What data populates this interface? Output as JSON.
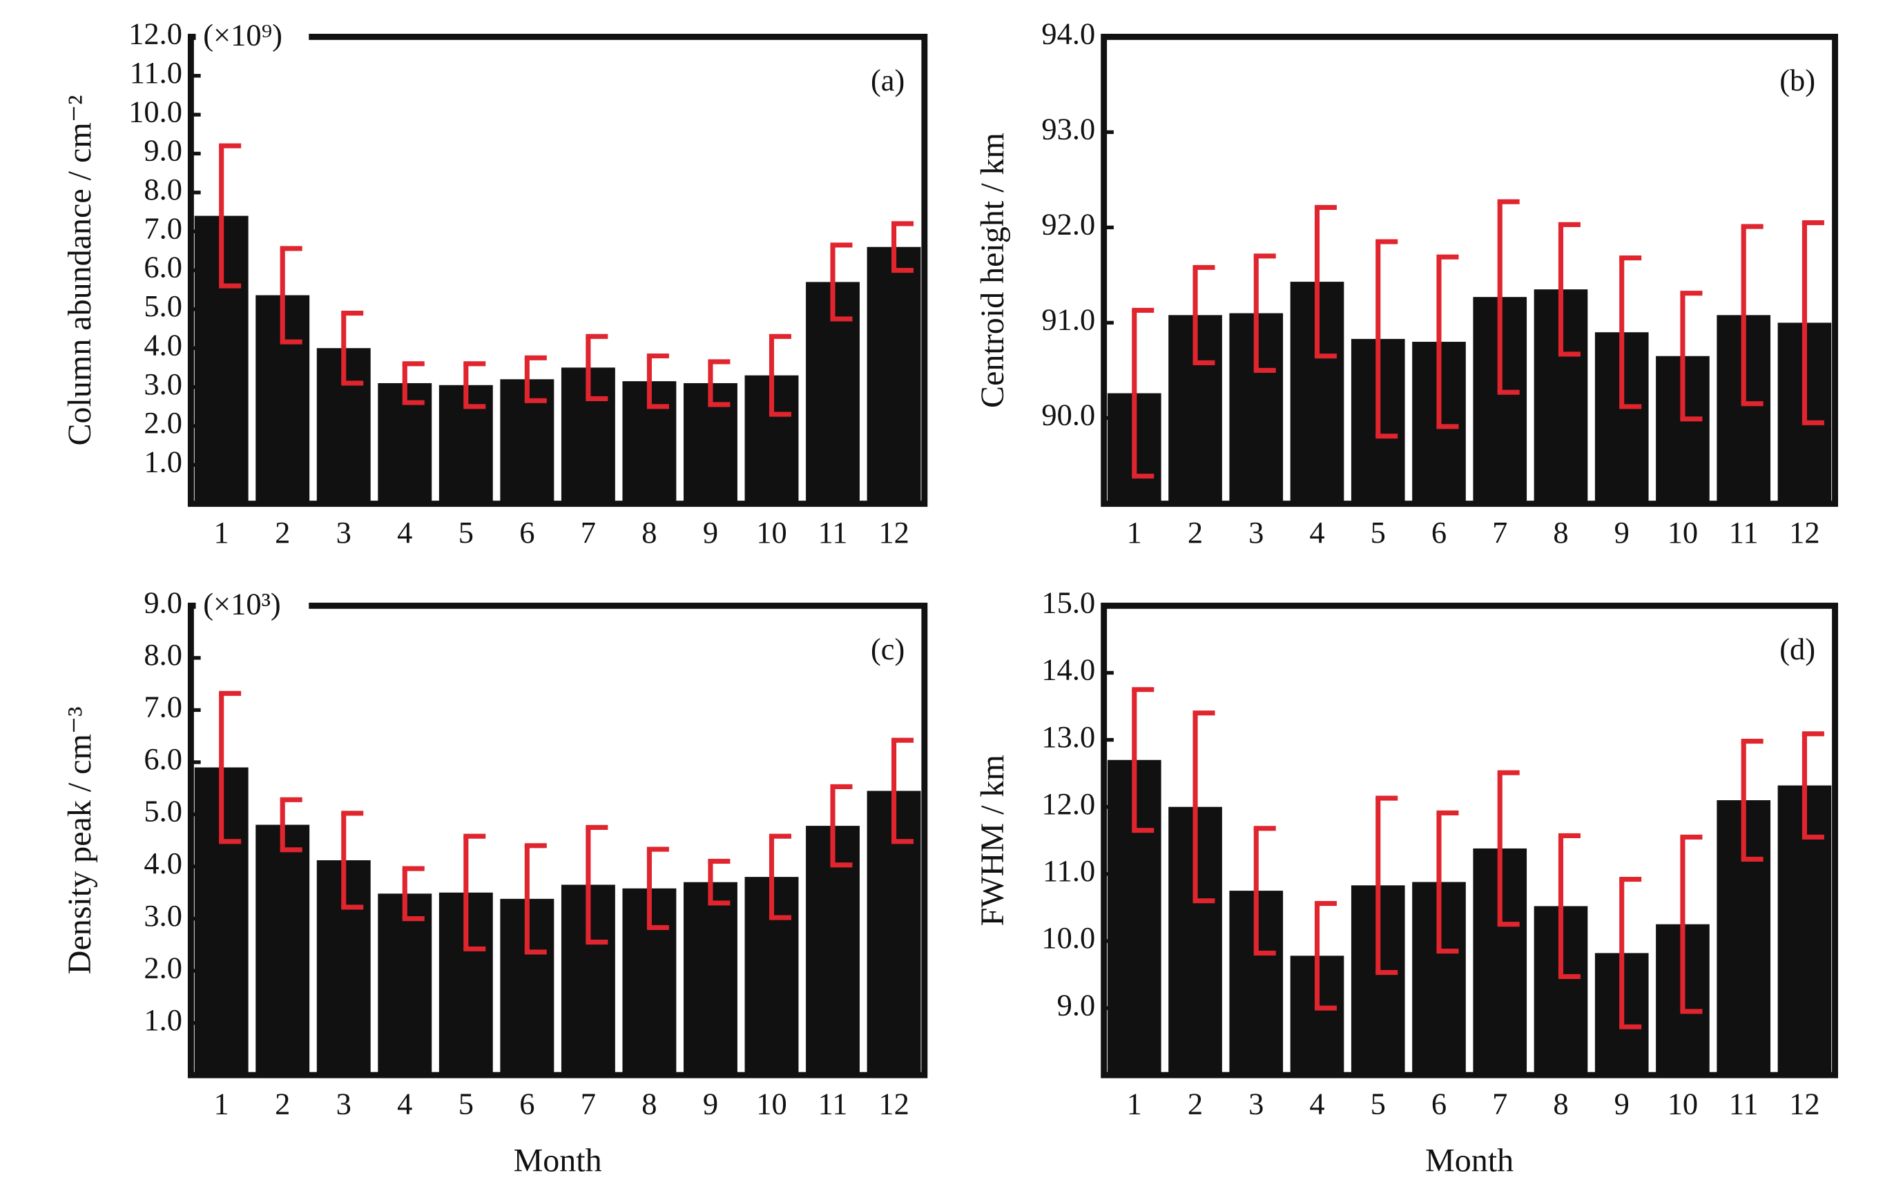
{
  "chart_data": [
    {
      "type": "bar",
      "panel_label": "(a)",
      "y_label": "Column abundance / cm⁻²",
      "multiplier": "(×10⁹)",
      "categories": [
        "1",
        "2",
        "3",
        "4",
        "5",
        "6",
        "7",
        "8",
        "9",
        "10",
        "11",
        "12"
      ],
      "values": [
        7.4,
        5.36,
        4.0,
        3.1,
        3.05,
        3.2,
        3.5,
        3.15,
        3.1,
        3.3,
        5.7,
        6.6
      ],
      "errors": [
        1.8,
        1.2,
        0.9,
        0.5,
        0.55,
        0.55,
        0.8,
        0.65,
        0.55,
        1.0,
        0.95,
        0.6
      ],
      "ylim": [
        0,
        12
      ],
      "yticks": [
        {
          "value": 1,
          "label": "1.0"
        },
        {
          "value": 2,
          "label": "2.0"
        },
        {
          "value": 3,
          "label": "3.0"
        },
        {
          "value": 4,
          "label": "4.0"
        },
        {
          "value": 5,
          "label": "5.0"
        },
        {
          "value": 6,
          "label": "6.0"
        },
        {
          "value": 7,
          "label": "7.0"
        },
        {
          "value": 8,
          "label": "8.0"
        },
        {
          "value": 9,
          "label": "9.0"
        },
        {
          "value": 10,
          "label": "10.0"
        },
        {
          "value": 11,
          "label": "11.0"
        },
        {
          "value": 12,
          "label": "12.0"
        }
      ],
      "color": "#111111",
      "error_color": "#e0252e"
    },
    {
      "type": "bar",
      "panel_label": "(b)",
      "y_label": "Centroid height / km",
      "categories": [
        "1",
        "2",
        "3",
        "4",
        "5",
        "6",
        "7",
        "8",
        "9",
        "10",
        "11",
        "12"
      ],
      "values": [
        90.26,
        91.08,
        91.1,
        91.43,
        90.83,
        90.8,
        91.27,
        91.35,
        90.9,
        90.65,
        91.08,
        91.0
      ],
      "errors": [
        0.87,
        0.5,
        0.6,
        0.78,
        1.02,
        0.89,
        1.0,
        0.68,
        0.78,
        0.66,
        0.93,
        1.05
      ],
      "ylim": [
        89.1,
        94
      ],
      "yticks": [
        {
          "value": 90,
          "label": "90.0"
        },
        {
          "value": 91,
          "label": "91.0"
        },
        {
          "value": 92,
          "label": "92.0"
        },
        {
          "value": 93,
          "label": "93.0"
        },
        {
          "value": 94,
          "label": "94.0"
        }
      ],
      "color": "#111111",
      "error_color": "#e0252e"
    },
    {
      "type": "bar",
      "panel_label": "(c)",
      "y_label": "Density peak / cm⁻³",
      "multiplier": "(×10³)",
      "x_label": "Month",
      "categories": [
        "1",
        "2",
        "3",
        "4",
        "5",
        "6",
        "7",
        "8",
        "9",
        "10",
        "11",
        "12"
      ],
      "values": [
        5.9,
        4.8,
        4.12,
        3.48,
        3.5,
        3.38,
        3.65,
        3.58,
        3.7,
        3.8,
        4.78,
        5.45
      ],
      "errors": [
        1.42,
        0.48,
        0.9,
        0.48,
        1.08,
        1.02,
        1.1,
        0.75,
        0.4,
        0.78,
        0.75,
        0.97
      ],
      "ylim": [
        0,
        9
      ],
      "yticks": [
        {
          "value": 1,
          "label": "1.0"
        },
        {
          "value": 2,
          "label": "2.0"
        },
        {
          "value": 3,
          "label": "3.0"
        },
        {
          "value": 4,
          "label": "4.0"
        },
        {
          "value": 5,
          "label": "5.0"
        },
        {
          "value": 6,
          "label": "6.0"
        },
        {
          "value": 7,
          "label": "7.0"
        },
        {
          "value": 8,
          "label": "8.0"
        },
        {
          "value": 9,
          "label": "9.0"
        }
      ],
      "color": "#111111",
      "error_color": "#e0252e"
    },
    {
      "type": "bar",
      "panel_label": "(d)",
      "y_label": "FWHM / km",
      "x_label": "Month",
      "categories": [
        "1",
        "2",
        "3",
        "4",
        "5",
        "6",
        "7",
        "8",
        "9",
        "10",
        "11",
        "12"
      ],
      "values": [
        12.7,
        12.0,
        10.75,
        9.78,
        10.83,
        10.88,
        11.38,
        10.52,
        9.82,
        10.25,
        12.1,
        12.32
      ],
      "errors": [
        1.05,
        1.4,
        0.93,
        0.78,
        1.3,
        1.03,
        1.13,
        1.05,
        1.1,
        1.3,
        0.88,
        0.77
      ],
      "ylim": [
        8,
        15
      ],
      "yticks": [
        {
          "value": 9,
          "label": "9.0"
        },
        {
          "value": 10,
          "label": "10.0"
        },
        {
          "value": 11,
          "label": "11.0"
        },
        {
          "value": 12,
          "label": "12.0"
        },
        {
          "value": 13,
          "label": "13.0"
        },
        {
          "value": 14,
          "label": "14.0"
        },
        {
          "value": 15,
          "label": "15.0"
        }
      ],
      "color": "#111111",
      "error_color": "#e0252e"
    }
  ]
}
